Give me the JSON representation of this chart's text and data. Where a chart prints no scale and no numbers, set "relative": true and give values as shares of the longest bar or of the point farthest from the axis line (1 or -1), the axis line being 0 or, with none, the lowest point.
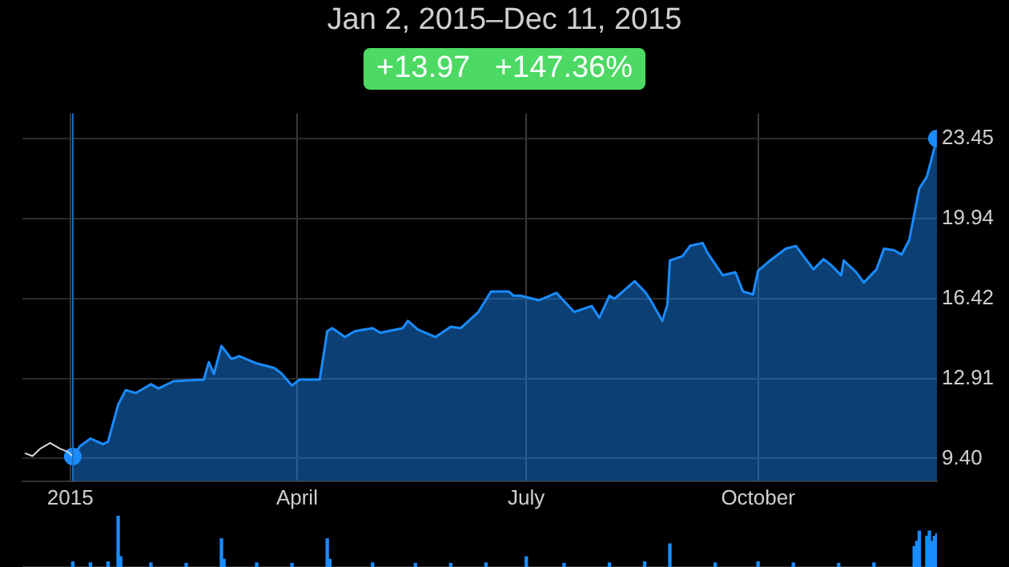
{
  "chart_data": [
    {
      "type": "area",
      "title": "Jan 2, 2015–Dec 11, 2015",
      "subtitle": "+13.97 +147.36%",
      "xlim": [
        "2014-12-13",
        "2015-12-11"
      ],
      "xticks": [
        {
          "value": "2015-01-01",
          "label": "2015"
        },
        {
          "value": "2015-04-01",
          "label": "April"
        },
        {
          "value": "2015-07-01",
          "label": "July"
        },
        {
          "value": "2015-10-01",
          "label": "October"
        }
      ],
      "ylim": [
        8.4,
        24.55
      ],
      "yticks": [
        {
          "value": 9.4,
          "label": "9.40"
        },
        12.91,
        16.42,
        19.94,
        23.45
      ],
      "grid": true,
      "legend": false,
      "ref_lines": [
        {
          "axis": "x",
          "value": "2015-01-02",
          "color": "#1a6fc0"
        }
      ],
      "series": [
        {
          "type": "line",
          "color": "#d8d8d8",
          "x": [
            "2014-12-14",
            "2014-12-17",
            "2014-12-20",
            "2014-12-24",
            "2014-12-28",
            "2014-12-31",
            "2015-01-02"
          ],
          "values": [
            9.63,
            9.5,
            9.82,
            10.08,
            9.82,
            9.69,
            9.48
          ]
        },
        {
          "type": "area",
          "color": "#1a8cff",
          "x": [
            "2015-01-02",
            "2015-01-05",
            "2015-01-09",
            "2015-01-14",
            "2015-01-16",
            "2015-01-20",
            "2015-01-23",
            "2015-01-27",
            "2015-02-02",
            "2015-02-05",
            "2015-02-11",
            "2015-02-23",
            "2015-02-25",
            "2015-02-27",
            "2015-03-02",
            "2015-03-06",
            "2015-03-09",
            "2015-03-16",
            "2015-03-23",
            "2015-03-26",
            "2015-03-30",
            "2015-04-02",
            "2015-04-10",
            "2015-04-13",
            "2015-04-15",
            "2015-04-20",
            "2015-04-24",
            "2015-05-01",
            "2015-05-04",
            "2015-05-13",
            "2015-05-15",
            "2015-05-19",
            "2015-05-26",
            "2015-06-01",
            "2015-06-05",
            "2015-06-12",
            "2015-06-17",
            "2015-06-24",
            "2015-06-26",
            "2015-06-29",
            "2015-07-06",
            "2015-07-13",
            "2015-07-20",
            "2015-07-27",
            "2015-07-30",
            "2015-08-03",
            "2015-08-05",
            "2015-08-13",
            "2015-08-17",
            "2015-08-19",
            "2015-08-24",
            "2015-08-26",
            "2015-08-27",
            "2015-09-01",
            "2015-09-04",
            "2015-09-09",
            "2015-09-11",
            "2015-09-17",
            "2015-09-22",
            "2015-09-25",
            "2015-09-29",
            "2015-10-01",
            "2015-10-05",
            "2015-10-12",
            "2015-10-16",
            "2015-10-23",
            "2015-10-27",
            "2015-10-30",
            "2015-11-03",
            "2015-11-04",
            "2015-11-09",
            "2015-11-12",
            "2015-11-17",
            "2015-11-20",
            "2015-11-24",
            "2015-11-27",
            "2015-11-30",
            "2015-12-04",
            "2015-12-07",
            "2015-12-11"
          ],
          "values": [
            9.48,
            9.95,
            10.27,
            10.02,
            10.14,
            11.76,
            12.4,
            12.27,
            12.66,
            12.47,
            12.79,
            12.86,
            13.63,
            13.11,
            14.34,
            13.76,
            13.89,
            13.57,
            13.37,
            13.11,
            12.6,
            12.86,
            12.86,
            14.99,
            15.12,
            14.73,
            14.99,
            15.12,
            14.92,
            15.12,
            15.44,
            15.05,
            14.73,
            15.18,
            15.12,
            15.83,
            16.73,
            16.73,
            16.54,
            16.54,
            16.34,
            16.67,
            15.83,
            16.09,
            15.57,
            16.54,
            16.41,
            17.18,
            16.73,
            16.41,
            15.44,
            16.15,
            18.09,
            18.28,
            18.73,
            18.86,
            18.41,
            17.44,
            17.57,
            16.73,
            16.6,
            17.64,
            18.02,
            18.61,
            18.73,
            17.7,
            18.15,
            17.89,
            17.44,
            18.09,
            17.57,
            17.12,
            17.7,
            18.61,
            18.54,
            18.35,
            18.99,
            21.25,
            21.77,
            23.45
          ]
        },
        {
          "type": "scatter",
          "color": "#1a8cff",
          "x": [
            "2015-01-02",
            "2015-12-11"
          ],
          "values": [
            9.48,
            23.45
          ]
        }
      ]
    },
    {
      "type": "bar",
      "relative": true,
      "color": "#1a8cff",
      "xlim": [
        "2014-12-13",
        "2015-12-11"
      ],
      "x": [
        "2015-01-02",
        "2015-01-09",
        "2015-01-16",
        "2015-01-20",
        "2015-01-21",
        "2015-02-02",
        "2015-02-16",
        "2015-03-02",
        "2015-03-03",
        "2015-03-16",
        "2015-03-30",
        "2015-04-13",
        "2015-04-14",
        "2015-05-01",
        "2015-05-18",
        "2015-06-01",
        "2015-06-15",
        "2015-07-01",
        "2015-07-16",
        "2015-08-03",
        "2015-08-17",
        "2015-08-27",
        "2015-09-14",
        "2015-10-01",
        "2015-10-15",
        "2015-11-02",
        "2015-11-16",
        "2015-12-02",
        "2015-12-03",
        "2015-12-04",
        "2015-12-07",
        "2015-12-08",
        "2015-12-09",
        "2015-12-10",
        "2015-12-11"
      ],
      "values": [
        0.1,
        0.08,
        0.1,
        1,
        0.2,
        0.08,
        0.07,
        0.55,
        0.15,
        0.08,
        0.07,
        0.55,
        0.15,
        0.08,
        0.07,
        0.07,
        0.08,
        0.2,
        0.07,
        0.08,
        0.1,
        0.45,
        0.08,
        0.1,
        0.08,
        0.07,
        0.08,
        0.4,
        0.5,
        0.7,
        0.6,
        0.7,
        0.5,
        0.6,
        0.65
      ]
    }
  ]
}
